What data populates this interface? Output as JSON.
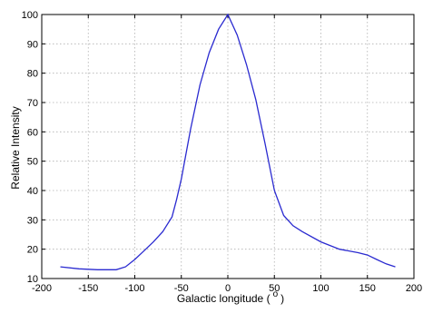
{
  "chart_data": {
    "type": "line",
    "title": "",
    "xlabel": "Galactic longitude (",
    "xlabel_unit": "o",
    "xlabel_close": ")",
    "ylabel": "Relative Intensity",
    "xlim": [
      -200,
      200
    ],
    "ylim": [
      10,
      100
    ],
    "xticks": [
      -200,
      -150,
      -100,
      -50,
      0,
      50,
      100,
      150,
      200
    ],
    "yticks": [
      10,
      20,
      30,
      40,
      50,
      60,
      70,
      80,
      90,
      100
    ],
    "grid": true,
    "series": [
      {
        "color": "#2a2ad0",
        "x": [
          -180,
          -160,
          -140,
          -120,
          -110,
          -100,
          -90,
          -80,
          -70,
          -60,
          -55,
          -50,
          -40,
          -30,
          -20,
          -10,
          0,
          10,
          20,
          30,
          40,
          50,
          60,
          70,
          80,
          100,
          120,
          140,
          150,
          160,
          170,
          180
        ],
        "y": [
          14,
          13.3,
          13,
          13,
          14,
          16.5,
          19.5,
          22.5,
          26,
          31,
          37,
          44,
          61,
          76,
          87,
          95,
          100,
          93,
          83,
          71,
          56,
          40,
          31.5,
          28,
          26,
          22.5,
          20,
          18.8,
          18,
          16.5,
          15,
          14
        ]
      }
    ]
  }
}
